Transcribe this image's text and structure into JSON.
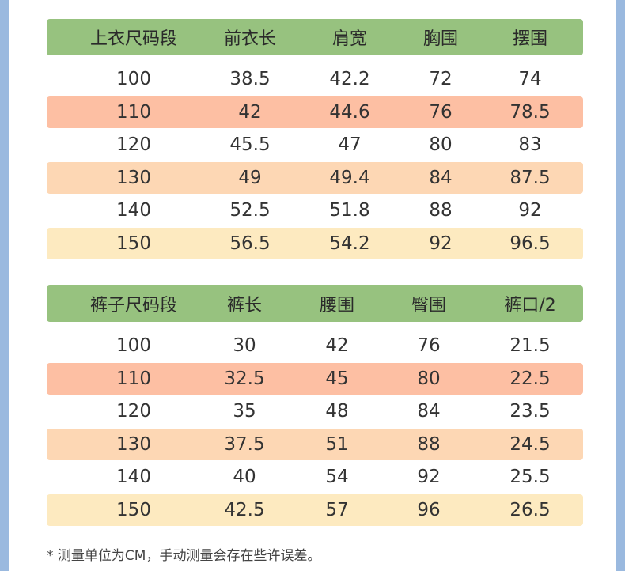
{
  "top_table": {
    "headers": [
      "上衣尺码段",
      "前衣长",
      "肩宽",
      "胸围",
      "摆围"
    ],
    "rows": [
      [
        "100",
        "38.5",
        "42.2",
        "72",
        "74"
      ],
      [
        "110",
        "42",
        "44.6",
        "76",
        "78.5"
      ],
      [
        "120",
        "45.5",
        "47",
        "80",
        "83"
      ],
      [
        "130",
        "49",
        "49.4",
        "84",
        "87.5"
      ],
      [
        "140",
        "52.5",
        "51.8",
        "88",
        "92"
      ],
      [
        "150",
        "56.5",
        "54.2",
        "92",
        "96.5"
      ]
    ]
  },
  "bottom_table": {
    "headers": [
      "裤子尺码段",
      "裤长",
      "腰围",
      "臀围",
      "裤口/2"
    ],
    "rows": [
      [
        "100",
        "30",
        "42",
        "76",
        "21.5"
      ],
      [
        "110",
        "32.5",
        "45",
        "80",
        "22.5"
      ],
      [
        "120",
        "35",
        "48",
        "84",
        "23.5"
      ],
      [
        "130",
        "37.5",
        "51",
        "88",
        "24.5"
      ],
      [
        "140",
        "40",
        "54",
        "92",
        "25.5"
      ],
      [
        "150",
        "42.5",
        "57",
        "96",
        "26.5"
      ]
    ]
  },
  "note": "* 测量单位为CM，手动测量会存在些许误差。",
  "colors": {
    "background": "#9ab9df",
    "header": "#97c27f",
    "row_110": "#fdbfa3",
    "row_130": "#fdd7b4",
    "row_150": "#fdeac0"
  }
}
